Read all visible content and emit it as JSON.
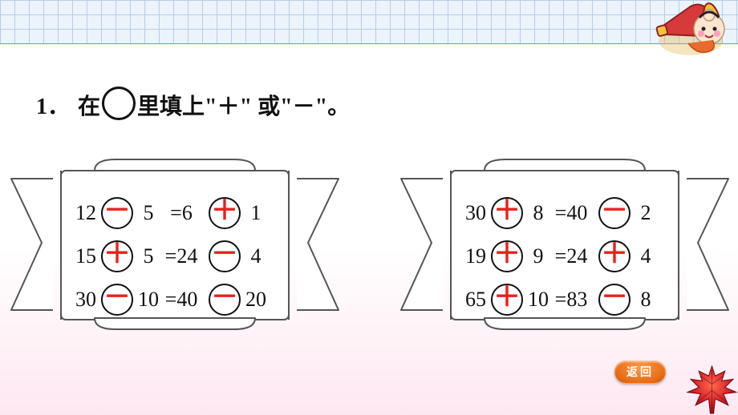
{
  "title": {
    "number": "1．",
    "pre": "在",
    "post": "里填上\"＋\" 或\"－\"。"
  },
  "answer_color": "#e9201e",
  "circle_border": "#111111",
  "left_card": {
    "rows": [
      {
        "a": "12",
        "op1": "－",
        "b": "5",
        "eq": "=6",
        "op2": "＋",
        "c": "1"
      },
      {
        "a": "15",
        "op1": "＋",
        "b": "5",
        "eq": "=24",
        "op2": "－",
        "c": "4"
      },
      {
        "a": "30",
        "op1": "－",
        "b": "10",
        "eq": "=40",
        "op2": "－",
        "c": "20"
      }
    ]
  },
  "right_card": {
    "rows": [
      {
        "a": "30",
        "op1": "＋",
        "b": "8",
        "eq": "=40",
        "op2": "－",
        "c": "2"
      },
      {
        "a": "19",
        "op1": "＋",
        "b": "9",
        "eq": "=24",
        "op2": "＋",
        "c": "4"
      },
      {
        "a": "65",
        "op1": "＋",
        "b": "10",
        "eq": "=83",
        "op2": "－",
        "c": "8"
      }
    ]
  },
  "return_label": "返回"
}
